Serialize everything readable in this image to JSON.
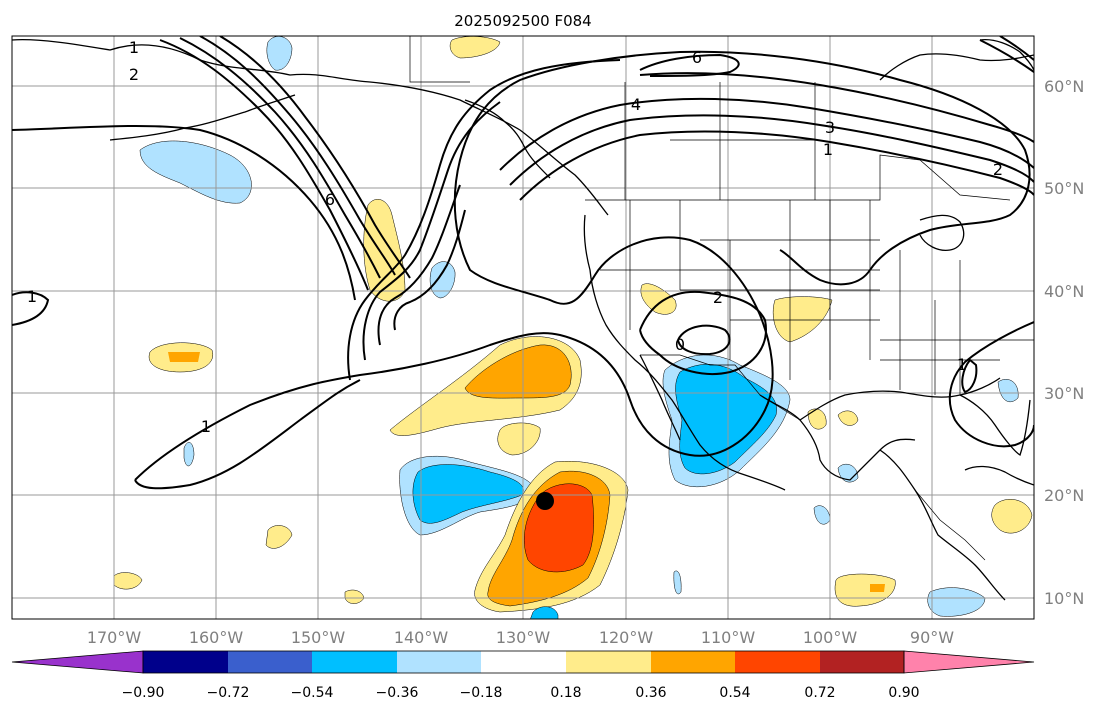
{
  "title": "2025092500 F084",
  "lon_labels": [
    "170°W",
    "160°W",
    "150°W",
    "140°W",
    "130°W",
    "120°W",
    "110°W",
    "100°W",
    "90°W"
  ],
  "lat_labels": [
    "60°N",
    "50°N",
    "40°N",
    "30°N",
    "20°N",
    "10°N"
  ],
  "colorbar": {
    "ticks": [
      "−0.90",
      "−0.72",
      "−0.54",
      "−0.36",
      "−0.18",
      "0.18",
      "0.36",
      "0.54",
      "0.72",
      "0.90"
    ],
    "colors": [
      "#9932CC",
      "#00008B",
      "#3A5FCD",
      "#00BFFF",
      "#B0E2FF",
      "#FFFFFF",
      "#FFEC8B",
      "#FFA500",
      "#FF4500",
      "#B22222",
      "#FF82AB"
    ]
  },
  "contour_labels": [
    "1",
    "2",
    "6",
    "4",
    "3",
    "1",
    "2",
    "6",
    "2",
    "1",
    "1",
    "0",
    "1"
  ],
  "colors": {
    "land_line": "#000000",
    "grid": "#999999",
    "contour": "#000000",
    "marker": "#000000"
  }
}
